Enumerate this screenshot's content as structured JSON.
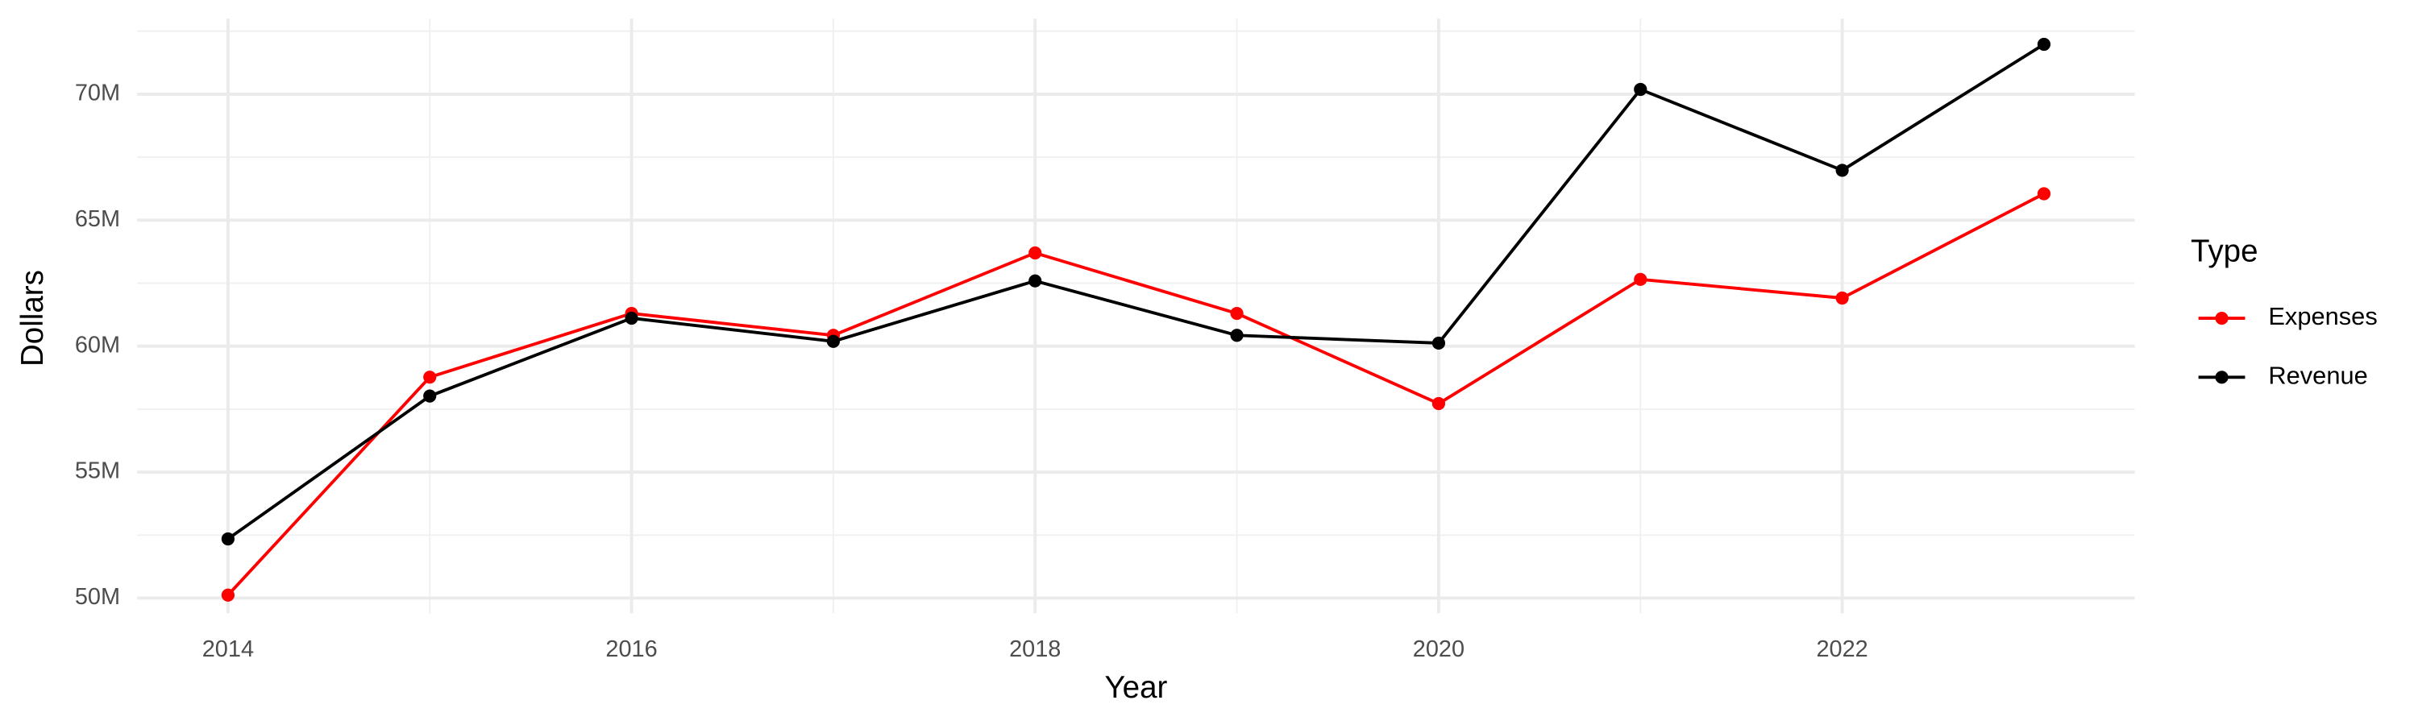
{
  "chart_data": {
    "type": "line",
    "x_label": "Year",
    "y_label": "Dollars",
    "legend_title": "Type",
    "x": [
      2014,
      2015,
      2016,
      2017,
      2018,
      2019,
      2020,
      2021,
      2022,
      2023
    ],
    "series": [
      {
        "name": "Expenses",
        "color": "#ff0000",
        "values": [
          50120000,
          58770000,
          61300000,
          60430000,
          63700000,
          61300000,
          57720000,
          62650000,
          61910000,
          66050000
        ]
      },
      {
        "name": "Revenue",
        "color": "#000000",
        "values": [
          52350000,
          58020000,
          61110000,
          60190000,
          62590000,
          60430000,
          60120000,
          70190000,
          66980000,
          71980000
        ]
      }
    ],
    "xlim": [
      2013.55,
      2023.45
    ],
    "xticks": [
      2014,
      2016,
      2018,
      2020,
      2022
    ],
    "ylim": [
      49400000,
      73000000
    ],
    "yticks": [
      {
        "value": 50000000,
        "label": "50M"
      },
      {
        "value": 55000000,
        "label": "55M"
      },
      {
        "value": 60000000,
        "label": "60M"
      },
      {
        "value": 65000000,
        "label": "65M"
      },
      {
        "value": 70000000,
        "label": "70M"
      }
    ],
    "grid": true,
    "legend": "right"
  }
}
